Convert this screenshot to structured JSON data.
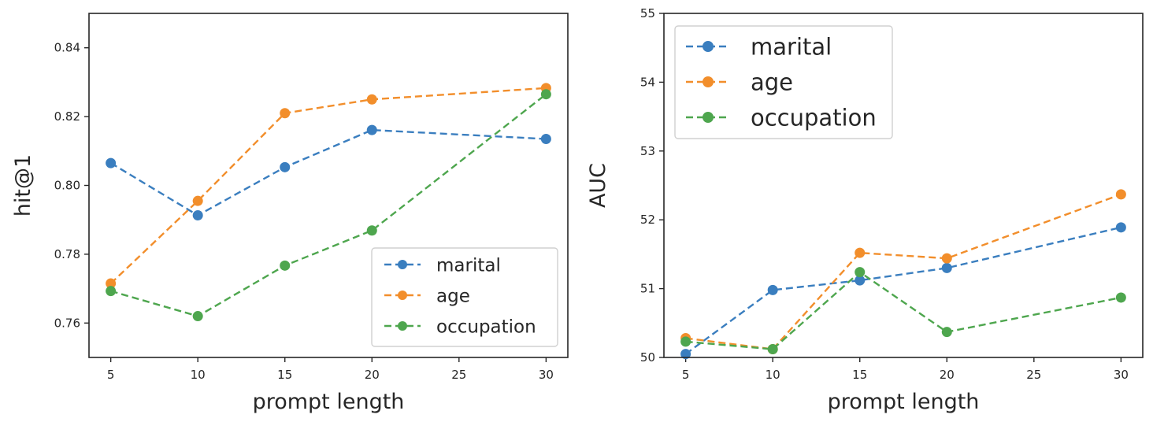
{
  "chart_data": [
    {
      "type": "line",
      "title": "",
      "xlabel": "prompt length",
      "ylabel": "hit@1",
      "x": [
        5,
        10,
        15,
        20,
        30
      ],
      "xticks": [
        5,
        10,
        15,
        20,
        25,
        30
      ],
      "xlim": [
        3.75,
        31.25
      ],
      "ylim": [
        0.75,
        0.85
      ],
      "yticks": [
        0.76,
        0.78,
        0.8,
        0.82,
        0.84
      ],
      "ytick_labels": [
        "0.76",
        "0.78",
        "0.80",
        "0.82",
        "0.84"
      ],
      "legend_position": "lower-right",
      "series": [
        {
          "name": "marital",
          "color": "#3a7ebf",
          "values": [
            0.8065,
            0.7913,
            0.8053,
            0.8161,
            0.8135
          ]
        },
        {
          "name": "age",
          "color": "#f28e2b",
          "values": [
            0.7715,
            0.7955,
            0.821,
            0.825,
            0.8283
          ]
        },
        {
          "name": "occupation",
          "color": "#4ea64e",
          "values": [
            0.7693,
            0.762,
            0.7767,
            0.7869,
            0.8265
          ]
        }
      ]
    },
    {
      "type": "line",
      "title": "",
      "xlabel": "prompt length",
      "ylabel": "AUC",
      "x": [
        5,
        10,
        15,
        20,
        30
      ],
      "xticks": [
        5,
        10,
        15,
        20,
        25,
        30
      ],
      "xlim": [
        3.75,
        31.25
      ],
      "ylim": [
        50,
        55
      ],
      "yticks": [
        50,
        51,
        52,
        53,
        54,
        55
      ],
      "ytick_labels": [
        "50",
        "51",
        "52",
        "53",
        "54",
        "55"
      ],
      "legend_position": "upper-left",
      "series": [
        {
          "name": "marital",
          "color": "#3a7ebf",
          "values": [
            50.05,
            50.98,
            51.12,
            51.3,
            51.89
          ]
        },
        {
          "name": "age",
          "color": "#f28e2b",
          "values": [
            50.28,
            50.12,
            51.52,
            51.44,
            52.37
          ]
        },
        {
          "name": "occupation",
          "color": "#4ea64e",
          "values": [
            50.23,
            50.12,
            51.24,
            50.37,
            50.87
          ]
        }
      ]
    }
  ]
}
